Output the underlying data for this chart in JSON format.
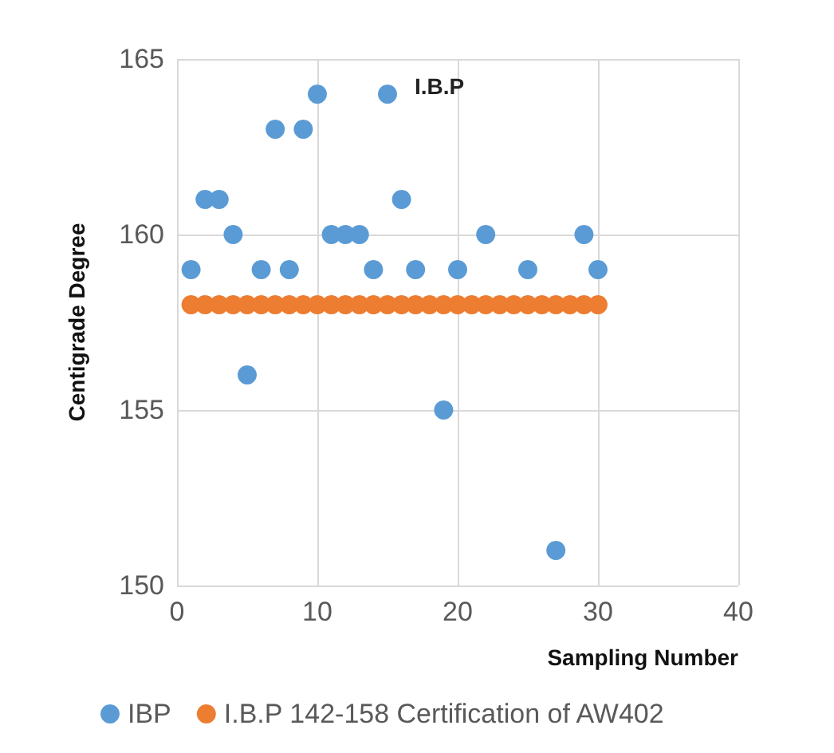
{
  "chart_data": {
    "type": "scatter",
    "title": "I.B.P",
    "xlabel": "Sampling Number",
    "ylabel": "Centigrade Degree",
    "series": [
      {
        "name": "IBP",
        "color": "#5b9bd5",
        "x": [
          1,
          2,
          3,
          4,
          5,
          6,
          7,
          8,
          9,
          10,
          11,
          12,
          13,
          14,
          15,
          16,
          17,
          19,
          20,
          22,
          25,
          27,
          29,
          30
        ],
        "values": [
          159,
          161,
          161,
          160,
          156,
          159,
          163,
          159,
          163,
          164,
          160,
          160,
          160,
          159,
          164,
          161,
          159,
          155,
          159,
          160,
          159,
          151,
          160,
          159
        ]
      },
      {
        "name": "I.B.P 142-158 Certification of AW402",
        "color": "#ed7d31",
        "x": [
          1,
          2,
          3,
          4,
          5,
          6,
          7,
          8,
          9,
          10,
          11,
          12,
          13,
          14,
          15,
          16,
          17,
          18,
          19,
          20,
          21,
          22,
          23,
          24,
          25,
          26,
          27,
          28,
          29,
          30
        ],
        "values": [
          158,
          158,
          158,
          158,
          158,
          158,
          158,
          158,
          158,
          158,
          158,
          158,
          158,
          158,
          158,
          158,
          158,
          158,
          158,
          158,
          158,
          158,
          158,
          158,
          158,
          158,
          158,
          158,
          158,
          158
        ]
      }
    ],
    "xlim": [
      0,
      40
    ],
    "xticks": [
      0,
      10,
      20,
      30,
      40
    ],
    "ylim": [
      150,
      165
    ],
    "yticks": [
      150,
      155,
      160,
      165
    ],
    "grid": true,
    "legend": "bottom left",
    "marker": "circle"
  }
}
